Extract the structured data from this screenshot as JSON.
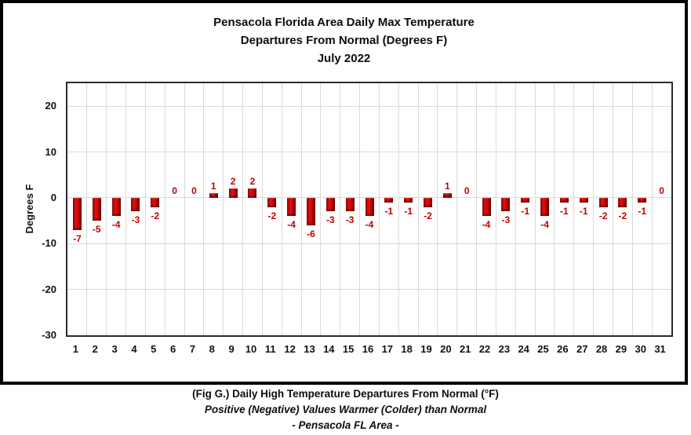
{
  "chart_data": {
    "type": "bar",
    "title_lines": [
      "Pensacola Florida Area Daily Max Temperature",
      "Departures From Normal (Degrees F)",
      "July 2022"
    ],
    "ylabel": "Degrees F",
    "categories": [
      "1",
      "2",
      "3",
      "4",
      "5",
      "6",
      "7",
      "8",
      "9",
      "10",
      "11",
      "12",
      "13",
      "14",
      "15",
      "16",
      "17",
      "18",
      "19",
      "20",
      "21",
      "22",
      "23",
      "24",
      "25",
      "26",
      "27",
      "28",
      "29",
      "30",
      "31"
    ],
    "values": [
      -7,
      -5,
      -4,
      -3,
      -2,
      0,
      0,
      1,
      2,
      2,
      -2,
      -4,
      -6,
      -3,
      -3,
      -4,
      -1,
      -1,
      -2,
      1,
      0,
      -4,
      -3,
      -1,
      -4,
      -1,
      -1,
      -2,
      -2,
      -1,
      0
    ],
    "ylim": [
      -30,
      25
    ],
    "yticks": [
      20,
      10,
      0,
      -10,
      -20,
      -30
    ],
    "grid": true,
    "legend_position": "none",
    "bar_color": "#C00000",
    "data_label_color": "#C00000",
    "gridline_color": "#D9D9D9"
  },
  "caption": {
    "line1": "(Fig G.) Daily High Temperature Departures From Normal (°F)",
    "line2": "Positive (Negative) Values Warmer (Colder) than Normal",
    "line3": "- Pensacola FL Area -"
  }
}
